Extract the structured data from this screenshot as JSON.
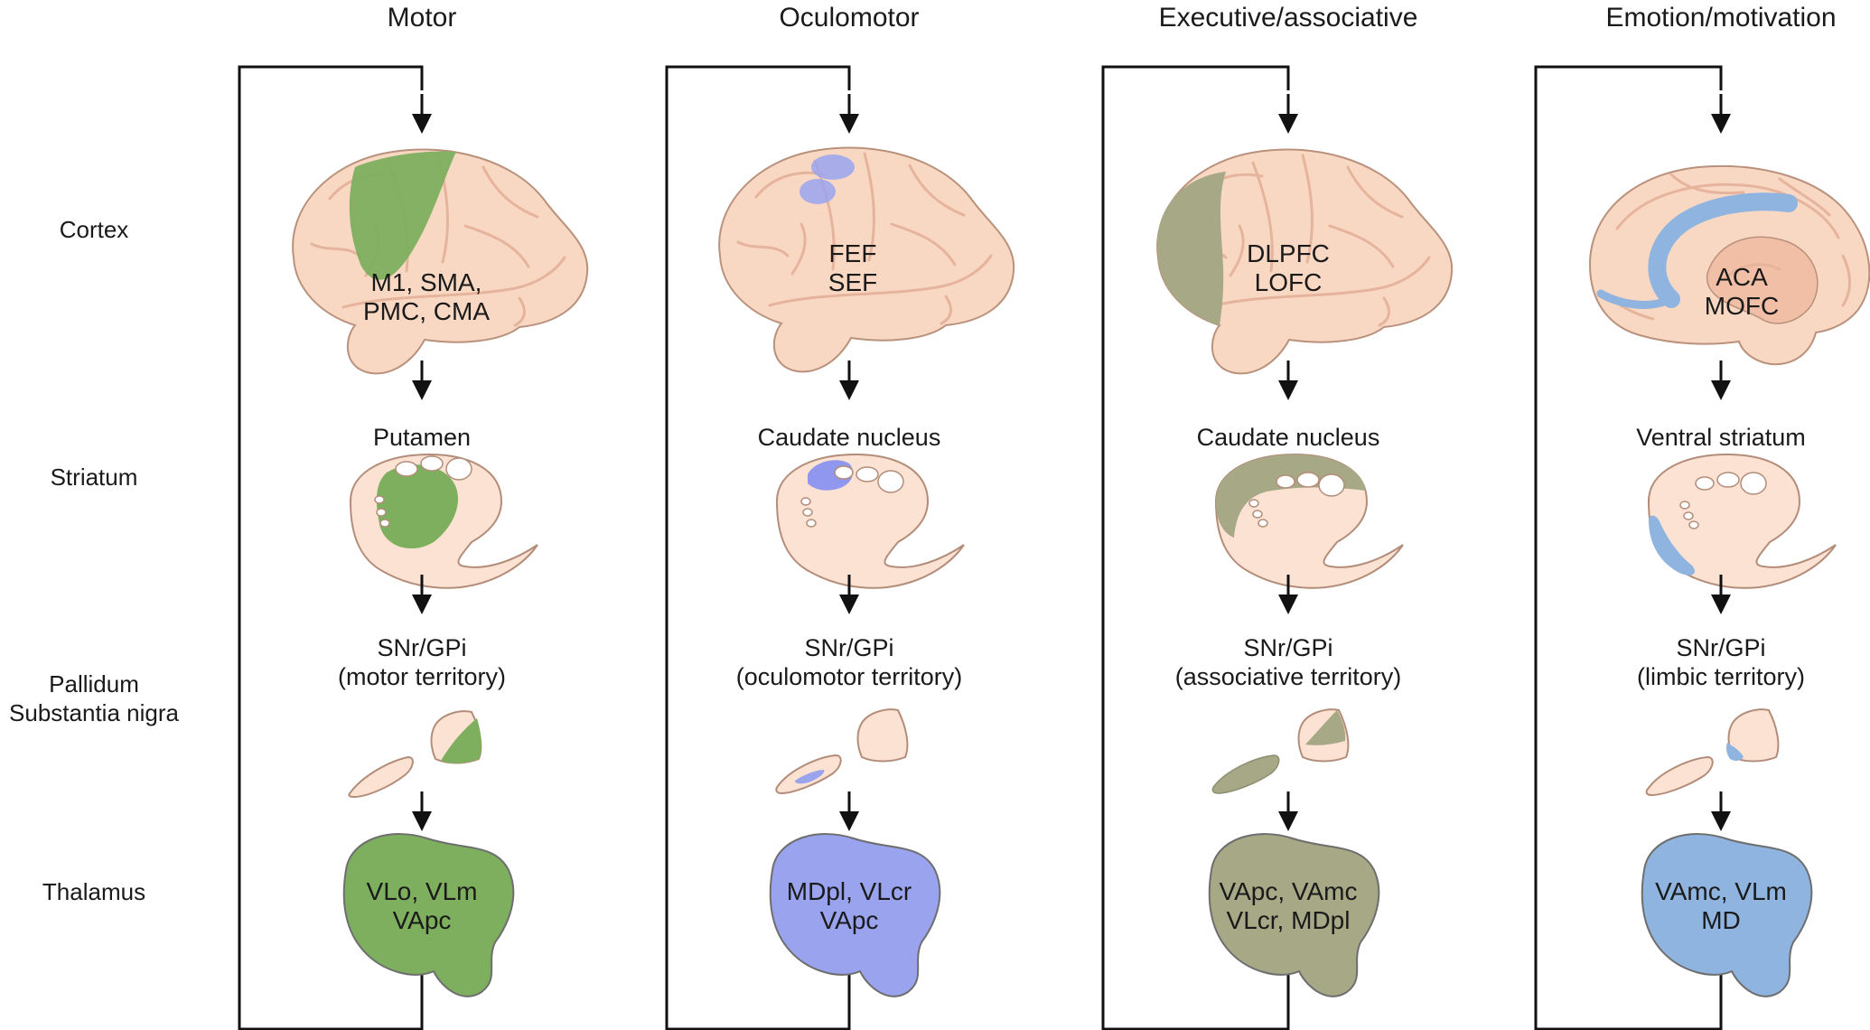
{
  "row_labels": {
    "cortex": "Cortex",
    "striatum": "Striatum",
    "pallidum_line1": "Pallidum",
    "pallidum_line2": "Substantia nigra",
    "thalamus": "Thalamus"
  },
  "colors": {
    "motor": "#7daf5e",
    "oculomotor": "#9aa4ee",
    "executive": "#a6a886",
    "emotion": "#8fb4df",
    "tissue": "#fbe2d2",
    "brain": "#f9d8c3"
  },
  "columns": [
    {
      "title": "Motor",
      "cortex_line1": "M1, SMA,",
      "cortex_line2": "PMC, CMA",
      "striatum_name": "Putamen",
      "pallidum_line1": "SNr/GPi",
      "pallidum_line2": "(motor territory)",
      "thalamus_line1": "VLo, VLm",
      "thalamus_line2": "VApc"
    },
    {
      "title": "Oculomotor",
      "cortex_line1": "FEF",
      "cortex_line2": "SEF",
      "striatum_name": "Caudate nucleus",
      "pallidum_line1": "SNr/GPi",
      "pallidum_line2": "(oculomotor territory)",
      "thalamus_line1": "MDpl, VLcr",
      "thalamus_line2": "VApc"
    },
    {
      "title": "Executive/associative",
      "cortex_line1": "DLPFC",
      "cortex_line2": "LOFC",
      "striatum_name": "Caudate nucleus",
      "pallidum_line1": "SNr/GPi",
      "pallidum_line2": "(associative territory)",
      "thalamus_line1": "VApc, VAmc",
      "thalamus_line2": "VLcr, MDpl"
    },
    {
      "title": "Emotion/motivation",
      "cortex_line1": "ACA",
      "cortex_line2": "MOFC",
      "striatum_name": "Ventral striatum",
      "pallidum_line1": "SNr/GPi",
      "pallidum_line2": "(limbic territory)",
      "thalamus_line1": "VAmc, VLm",
      "thalamus_line2": "MD"
    }
  ]
}
